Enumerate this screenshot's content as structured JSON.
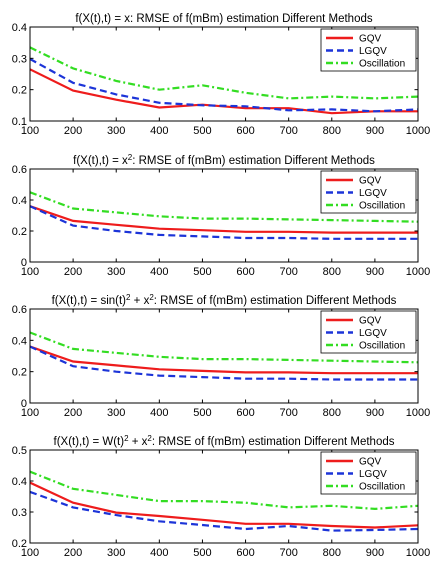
{
  "chart_data": [
    {
      "type": "line",
      "title_parts": [
        [
          "f(X(t),t) = x: RMSE of f(mBm) estimation Different Methods",
          ""
        ]
      ],
      "x": [
        100,
        200,
        300,
        400,
        500,
        600,
        700,
        800,
        900,
        1000
      ],
      "xticks": [
        100,
        200,
        300,
        400,
        500,
        600,
        700,
        800,
        900,
        1000
      ],
      "xlim": [
        100,
        1000
      ],
      "ylim": [
        0.1,
        0.4
      ],
      "yticks": [
        0.1,
        0.2,
        0.3,
        0.4
      ],
      "legend_position": "top-right",
      "series": [
        {
          "name": "GQV",
          "color": "#ee1c1c",
          "dash": "solid",
          "values": [
            0.265,
            0.197,
            0.168,
            0.143,
            0.152,
            0.141,
            0.141,
            0.125,
            0.131,
            0.131
          ]
        },
        {
          "name": "LGQV",
          "color": "#1c34d8",
          "dash": "dashed",
          "values": [
            0.298,
            0.222,
            0.185,
            0.158,
            0.15,
            0.147,
            0.134,
            0.137,
            0.131,
            0.137
          ]
        },
        {
          "name": "Oscillation",
          "color": "#33dd22",
          "dash": "dashdot",
          "values": [
            0.335,
            0.268,
            0.228,
            0.2,
            0.214,
            0.19,
            0.172,
            0.178,
            0.172,
            0.178
          ]
        }
      ]
    },
    {
      "type": "line",
      "title_parts": [
        [
          "f(X(t),t) = x",
          ""
        ],
        [
          "2",
          "sup"
        ],
        [
          ": RMSE of f(mBm) estimation Different Methods",
          ""
        ]
      ],
      "x": [
        100,
        200,
        300,
        400,
        500,
        600,
        700,
        800,
        900,
        1000
      ],
      "xticks": [
        100,
        200,
        300,
        400,
        500,
        600,
        700,
        800,
        900,
        1000
      ],
      "xlim": [
        100,
        1000
      ],
      "ylim": [
        0,
        0.6
      ],
      "yticks": [
        0,
        0.2,
        0.4,
        0.6
      ],
      "legend_position": "top-right",
      "series": [
        {
          "name": "GQV",
          "color": "#ee1c1c",
          "dash": "solid",
          "values": [
            0.36,
            0.265,
            0.24,
            0.215,
            0.205,
            0.195,
            0.195,
            0.19,
            0.19,
            0.19
          ]
        },
        {
          "name": "LGQV",
          "color": "#1c34d8",
          "dash": "dashed",
          "values": [
            0.36,
            0.235,
            0.2,
            0.175,
            0.165,
            0.155,
            0.155,
            0.15,
            0.15,
            0.15
          ]
        },
        {
          "name": "Oscillation",
          "color": "#33dd22",
          "dash": "dashdot",
          "values": [
            0.45,
            0.345,
            0.32,
            0.295,
            0.28,
            0.28,
            0.275,
            0.27,
            0.265,
            0.26
          ]
        }
      ]
    },
    {
      "type": "line",
      "title_parts": [
        [
          "f(X(t),t) = sin(t)",
          ""
        ],
        [
          "2",
          "sup"
        ],
        [
          " + x",
          ""
        ],
        [
          "2",
          "sup"
        ],
        [
          ": RMSE of f(mBm) estimation Different Methods",
          ""
        ]
      ],
      "x": [
        100,
        200,
        300,
        400,
        500,
        600,
        700,
        800,
        900,
        1000
      ],
      "xticks": [
        100,
        200,
        300,
        400,
        500,
        600,
        700,
        800,
        900,
        1000
      ],
      "xlim": [
        100,
        1000
      ],
      "ylim": [
        0,
        0.6
      ],
      "yticks": [
        0,
        0.2,
        0.4,
        0.6
      ],
      "legend_position": "top-right",
      "series": [
        {
          "name": "GQV",
          "color": "#ee1c1c",
          "dash": "solid",
          "values": [
            0.36,
            0.265,
            0.24,
            0.215,
            0.205,
            0.195,
            0.195,
            0.19,
            0.19,
            0.19
          ]
        },
        {
          "name": "LGQV",
          "color": "#1c34d8",
          "dash": "dashed",
          "values": [
            0.36,
            0.235,
            0.2,
            0.175,
            0.165,
            0.155,
            0.155,
            0.15,
            0.15,
            0.15
          ]
        },
        {
          "name": "Oscillation",
          "color": "#33dd22",
          "dash": "dashdot",
          "values": [
            0.45,
            0.345,
            0.32,
            0.295,
            0.28,
            0.28,
            0.275,
            0.27,
            0.265,
            0.26
          ]
        }
      ]
    },
    {
      "type": "line",
      "title_parts": [
        [
          "f(X(t),t) = W(t)",
          ""
        ],
        [
          "2",
          "sup"
        ],
        [
          " + x",
          ""
        ],
        [
          "2",
          "sup"
        ],
        [
          ": RMSE of f(mBm) estimation Different Methods",
          ""
        ]
      ],
      "x": [
        100,
        200,
        300,
        400,
        500,
        600,
        700,
        800,
        900,
        1000
      ],
      "xticks": [
        100,
        200,
        300,
        400,
        500,
        600,
        700,
        800,
        900,
        1000
      ],
      "xlim": [
        100,
        1000
      ],
      "ylim": [
        0.2,
        0.5
      ],
      "yticks": [
        0.2,
        0.3,
        0.4,
        0.5
      ],
      "legend_position": "top-right",
      "series": [
        {
          "name": "GQV",
          "color": "#ee1c1c",
          "dash": "solid",
          "values": [
            0.395,
            0.33,
            0.298,
            0.287,
            0.275,
            0.262,
            0.262,
            0.255,
            0.25,
            0.257
          ]
        },
        {
          "name": "LGQV",
          "color": "#1c34d8",
          "dash": "dashed",
          "values": [
            0.365,
            0.315,
            0.29,
            0.27,
            0.258,
            0.245,
            0.255,
            0.24,
            0.242,
            0.245
          ]
        },
        {
          "name": "Oscillation",
          "color": "#33dd22",
          "dash": "dashdot",
          "values": [
            0.43,
            0.375,
            0.355,
            0.335,
            0.335,
            0.33,
            0.315,
            0.32,
            0.31,
            0.32
          ]
        }
      ]
    }
  ]
}
